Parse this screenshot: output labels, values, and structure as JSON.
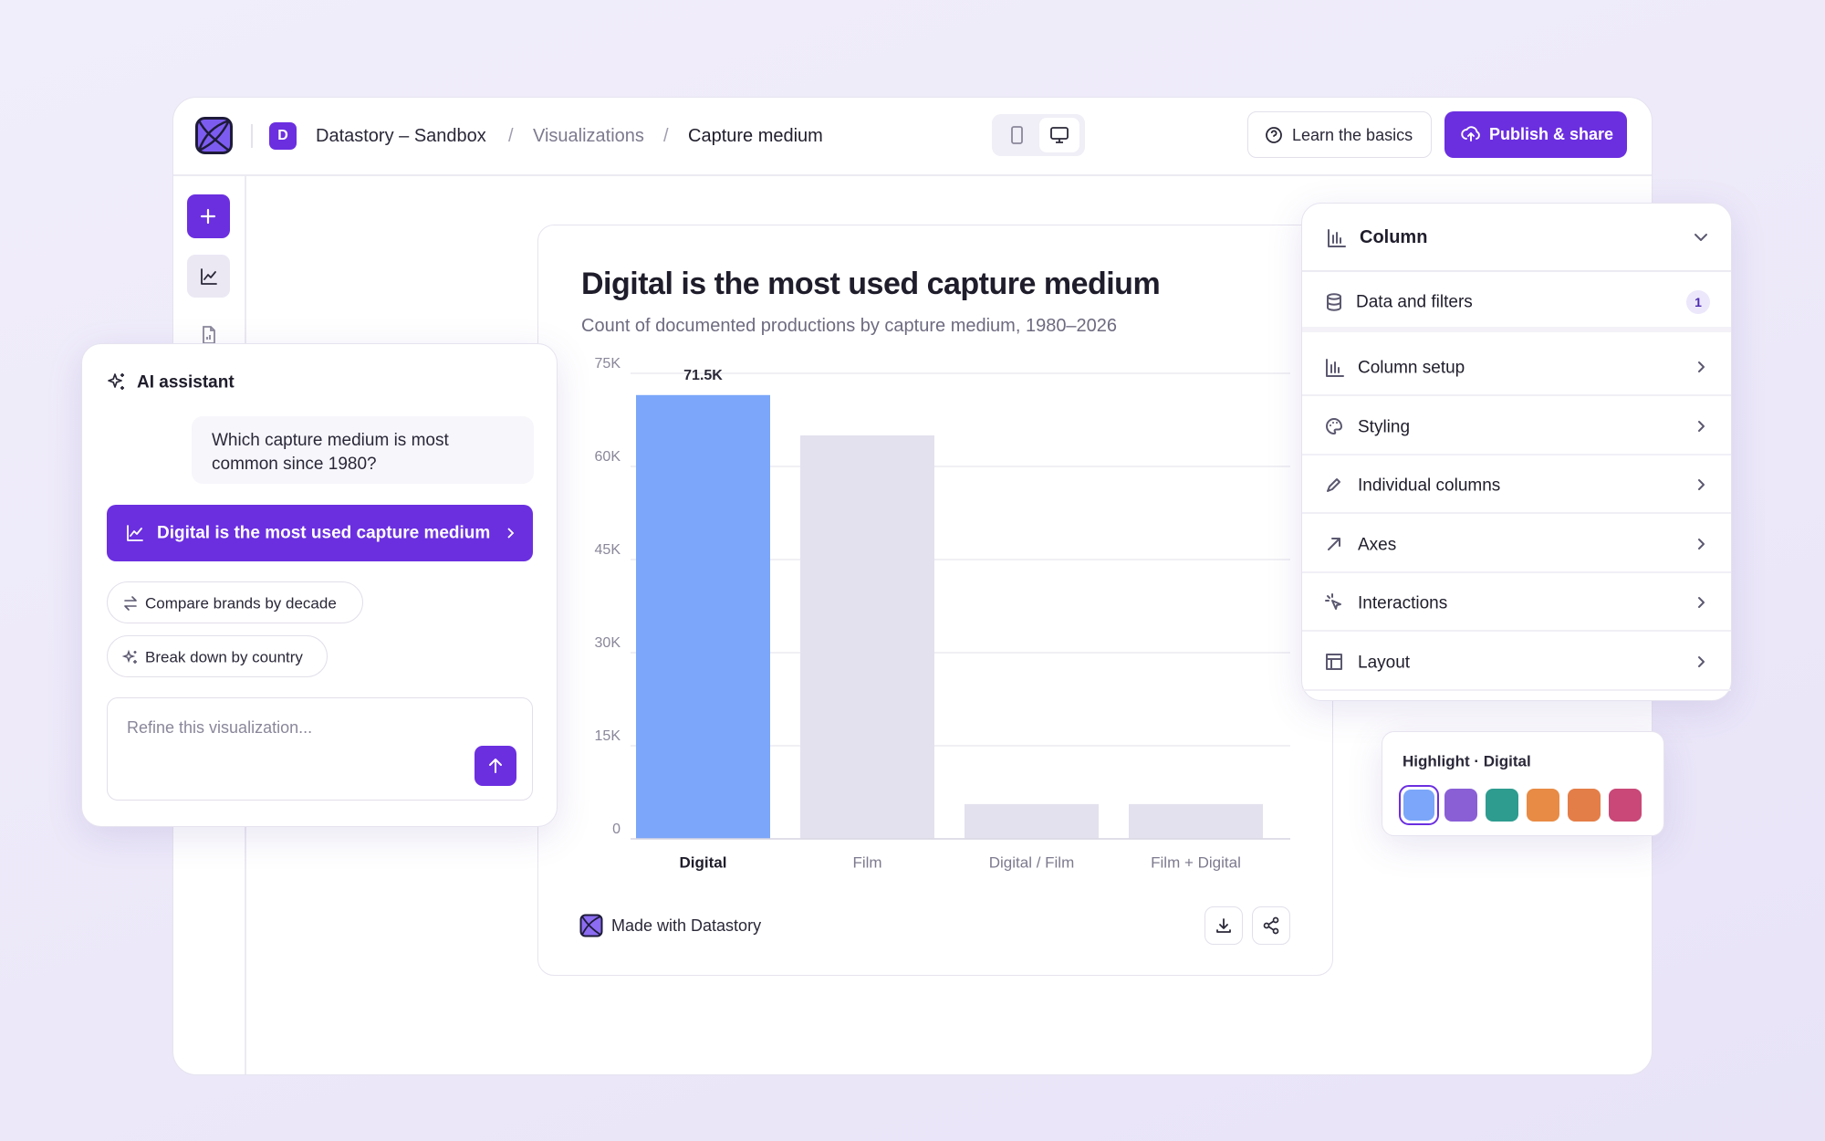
{
  "header": {
    "workspace_initial": "D",
    "breadcrumbs": [
      "Datastory – Sandbox",
      "Visualizations",
      "Capture medium"
    ],
    "learn_button": "Learn the basics",
    "publish_button": "Publish & share"
  },
  "assistant": {
    "title": "AI assistant",
    "user_message": "Which capture medium is most common since 1980?",
    "suggestion": "Digital is the most used capture medium",
    "chips": [
      "Compare brands by decade",
      "Break down by country"
    ],
    "input_placeholder": "Refine this visualization..."
  },
  "chart_data": {
    "type": "bar",
    "title": "Digital is the most used capture medium",
    "subtitle": "Count of documented productions by capture medium, 1980–2026",
    "categories": [
      "Digital",
      "Film",
      "Digital / Film",
      "Film + Digital"
    ],
    "values": [
      71500,
      65000,
      5600,
      5600
    ],
    "value_labels": [
      "71.5K",
      null,
      null,
      null
    ],
    "colors": [
      "#7ba6f9",
      "#e3e1ee",
      "#e3e1ee",
      "#e3e1ee"
    ],
    "highlight_color": "#7ba6f9",
    "ylim": [
      0,
      75000
    ],
    "yticks": [
      0,
      {
        "value": 15000,
        "label": "15K"
      },
      {
        "value": 30000,
        "label": "30K"
      },
      {
        "value": 45000,
        "label": "45K"
      },
      {
        "value": 60000,
        "label": "60K"
      },
      {
        "value": 75000,
        "label": "75K"
      }
    ],
    "grid": true
  },
  "chart_footer": "Made with Datastory",
  "settings": {
    "chart_type": "Column",
    "data_row": {
      "label": "Data and filters",
      "badge": 1
    },
    "rows": [
      "Column setup",
      "Styling",
      "Individual columns",
      "Axes",
      "Interactions",
      "Layout"
    ]
  },
  "highlight": {
    "title": "Highlight · Digital"
  }
}
